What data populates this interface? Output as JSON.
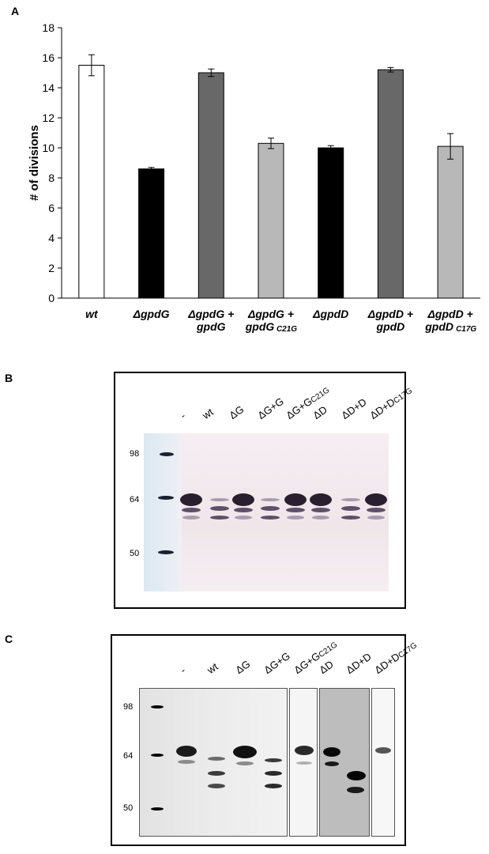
{
  "panels": {
    "a": "A",
    "b": "B",
    "c": "C"
  },
  "chart_data": {
    "type": "bar",
    "ylabel": "# of divisions",
    "ylim": [
      0,
      18
    ],
    "yticks": [
      0,
      2,
      4,
      6,
      8,
      10,
      12,
      14,
      16,
      18
    ],
    "categories": [
      {
        "line1": "wt",
        "line2": "",
        "sub": ""
      },
      {
        "line1": "ΔgpdG",
        "line2": "",
        "sub": ""
      },
      {
        "line1": "ΔgpdG +",
        "line2": "gpdG",
        "sub": ""
      },
      {
        "line1": "ΔgpdG +",
        "line2": "gpdG",
        "sub": "C21G"
      },
      {
        "line1": "ΔgpdD",
        "line2": "",
        "sub": ""
      },
      {
        "line1": "ΔgpdD +",
        "line2": "gpdD",
        "sub": ""
      },
      {
        "line1": "ΔgpdD +",
        "line2": "gpdD",
        "sub": "C17G"
      }
    ],
    "values": [
      15.5,
      8.6,
      15.0,
      10.3,
      10.0,
      15.2,
      10.1
    ],
    "errors": [
      0.7,
      0.1,
      0.25,
      0.35,
      0.15,
      0.15,
      0.85
    ],
    "colors": [
      "#ffffff",
      "#000000",
      "#686868",
      "#b8b8b8",
      "#000000",
      "#686868",
      "#b8b8b8"
    ],
    "grid": false,
    "legend": "none"
  },
  "blot_b": {
    "lanes": [
      "-",
      "wt",
      "ΔG",
      "ΔG+G",
      "ΔG+G",
      "ΔD",
      "ΔD+D",
      "ΔD+D"
    ],
    "lane_subs": [
      "",
      "",
      "",
      "",
      "C21G",
      "",
      "",
      "C17G"
    ],
    "markers": [
      "98",
      "64",
      "50"
    ]
  },
  "blot_c": {
    "lanes": [
      "-",
      "wt",
      "ΔG",
      "ΔG+G",
      "ΔG+G",
      "ΔD",
      "ΔD+D",
      "ΔD+D"
    ],
    "lane_subs": [
      "",
      "",
      "",
      "",
      "C21G",
      "",
      "",
      "C17G"
    ],
    "markers": [
      "98",
      "64",
      "50"
    ]
  }
}
